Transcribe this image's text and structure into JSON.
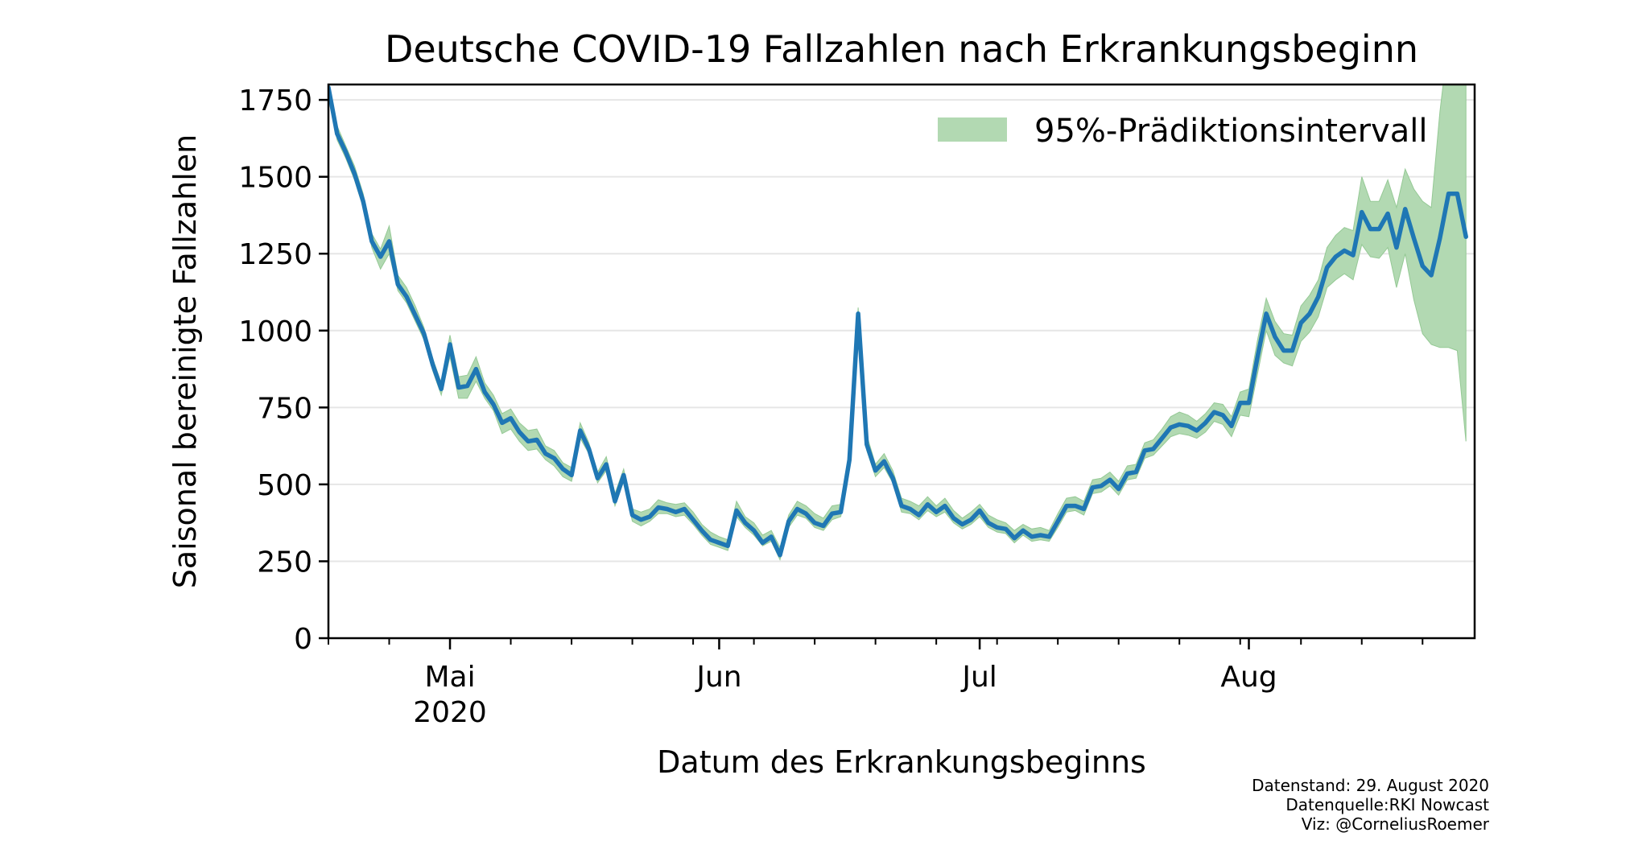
{
  "chart_data": {
    "type": "area",
    "title": "Deutsche COVID-19 Fallzahlen nach Erkrankungsbeginn",
    "xlabel": "Datum des Erkrankungsbeginns",
    "ylabel": "Saisonal bereinigte Fallzahlen",
    "xlim": [
      "2020-04-17",
      "2020-08-27"
    ],
    "ylim": [
      0,
      1800
    ],
    "yticks": [
      0,
      250,
      500,
      750,
      1000,
      1250,
      1500,
      1750
    ],
    "xticks_major": [
      {
        "date": "2020-05-01",
        "label": "Mai",
        "sublabel": "2020"
      },
      {
        "date": "2020-06-01",
        "label": "Jun",
        "sublabel": ""
      },
      {
        "date": "2020-07-01",
        "label": "Jul",
        "sublabel": ""
      },
      {
        "date": "2020-08-01",
        "label": "Aug",
        "sublabel": ""
      }
    ],
    "grid": "y",
    "legend": {
      "placement": "top-right",
      "entries": [
        "95%-Prädiktionsintervall"
      ]
    },
    "colors": {
      "line": "#1f77b4",
      "band": "#b2d9b2",
      "band_edge": "#95c995"
    },
    "series": [
      {
        "kind": "line",
        "start_date": "2020-04-17",
        "values": [
          1790,
          1640,
          1580,
          1510,
          1420,
          1290,
          1240,
          1290,
          1150,
          1110,
          1050,
          990,
          890,
          810,
          955,
          815,
          820,
          875,
          800,
          760,
          700,
          715,
          670,
          640,
          645,
          600,
          585,
          550,
          530,
          675,
          615,
          520,
          565,
          445,
          530,
          400,
          385,
          395,
          425,
          420,
          410,
          420,
          385,
          350,
          320,
          310,
          300,
          415,
          375,
          350,
          310,
          330,
          270,
          380,
          420,
          405,
          375,
          365,
          405,
          410,
          580,
          1055,
          630,
          545,
          575,
          520,
          430,
          420,
          400,
          435,
          410,
          430,
          390,
          370,
          385,
          415,
          375,
          360,
          355,
          325,
          350,
          330,
          335,
          330,
          380,
          430,
          430,
          420,
          490,
          495,
          515,
          485,
          535,
          540,
          610,
          615,
          650,
          685,
          695,
          690,
          675,
          700,
          735,
          725,
          690,
          765,
          765,
          915,
          1055,
          980,
          935,
          935,
          1025,
          1055,
          1110,
          1205,
          1240,
          1260,
          1245,
          1385,
          1330,
          1330,
          1380,
          1270,
          1395,
          1300,
          1210,
          1180,
          1300,
          1445,
          1445,
          1305
        ]
      },
      {
        "kind": "band",
        "name": "95%-Prädiktionsintervall",
        "start_date": "2020-04-17",
        "lower": [
          1770,
          1620,
          1560,
          1490,
          1400,
          1270,
          1200,
          1250,
          1130,
          1090,
          1030,
          970,
          870,
          790,
          915,
          780,
          780,
          835,
          780,
          740,
          665,
          680,
          640,
          610,
          615,
          580,
          560,
          525,
          510,
          650,
          600,
          505,
          545,
          430,
          510,
          380,
          365,
          380,
          405,
          405,
          395,
          400,
          370,
          335,
          305,
          295,
          285,
          395,
          360,
          335,
          300,
          315,
          255,
          360,
          400,
          390,
          360,
          350,
          385,
          395,
          560,
          1035,
          610,
          525,
          555,
          505,
          410,
          405,
          385,
          415,
          395,
          410,
          375,
          355,
          370,
          395,
          360,
          345,
          340,
          310,
          335,
          315,
          320,
          315,
          360,
          410,
          415,
          400,
          470,
          475,
          495,
          465,
          515,
          520,
          585,
          595,
          625,
          655,
          665,
          660,
          650,
          670,
          705,
          695,
          655,
          725,
          720,
          860,
          1000,
          920,
          895,
          885,
          965,
          995,
          1045,
          1140,
          1165,
          1185,
          1165,
          1280,
          1240,
          1235,
          1270,
          1140,
          1250,
          1100,
          990,
          955,
          945,
          945,
          935,
          640
        ],
        "upper": [
          1810,
          1665,
          1600,
          1535,
          1445,
          1315,
          1265,
          1340,
          1180,
          1140,
          1080,
          1010,
          910,
          830,
          985,
          850,
          855,
          915,
          830,
          790,
          730,
          745,
          700,
          675,
          680,
          625,
          610,
          570,
          555,
          700,
          635,
          540,
          590,
          470,
          550,
          420,
          410,
          420,
          450,
          440,
          435,
          440,
          410,
          370,
          345,
          330,
          320,
          445,
          395,
          375,
          335,
          350,
          295,
          400,
          445,
          430,
          405,
          390,
          430,
          435,
          605,
          1075,
          660,
          565,
          600,
          545,
          455,
          445,
          430,
          460,
          430,
          455,
          415,
          390,
          410,
          435,
          400,
          385,
          375,
          350,
          370,
          355,
          360,
          350,
          405,
          455,
          460,
          445,
          515,
          520,
          540,
          510,
          560,
          565,
          635,
          645,
          680,
          720,
          735,
          725,
          705,
          730,
          765,
          760,
          720,
          800,
          810,
          970,
          1105,
          1030,
          990,
          985,
          1080,
          1115,
          1165,
          1270,
          1310,
          1335,
          1325,
          1500,
          1420,
          1420,
          1490,
          1400,
          1525,
          1460,
          1420,
          1400,
          1710,
          1950,
          2000,
          1950
        ]
      }
    ]
  },
  "footnote": {
    "line1": "Datenstand: 29. August 2020",
    "line2": "Datenquelle:RKI Nowcast",
    "line3": "Viz: @CorneliusRoemer"
  }
}
